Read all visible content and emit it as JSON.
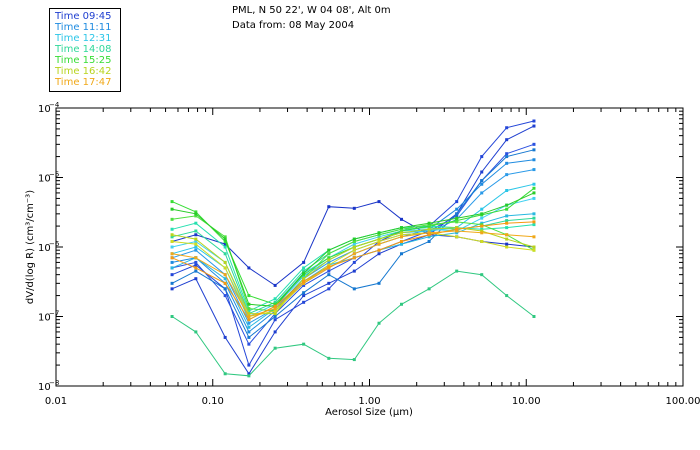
{
  "header": {
    "location": "PML, N 50 22', W 04 08', Alt 0m",
    "date_line": "Data from: 08 May 2004"
  },
  "legend": [
    {
      "label": "Time 09:45",
      "color": "#1f3fd0"
    },
    {
      "label": "Time 11:11",
      "color": "#1e8be0"
    },
    {
      "label": "Time 12:31",
      "color": "#2cc6e8"
    },
    {
      "label": "Time 14:08",
      "color": "#2fd89a"
    },
    {
      "label": "Time 15:25",
      "color": "#37dd35"
    },
    {
      "label": "Time 16:42",
      "color": "#b8d41e"
    },
    {
      "label": "Time 17:47",
      "color": "#f0a818"
    }
  ],
  "chart_data": {
    "type": "line",
    "title": "",
    "xlabel": "Aerosol Size (μm)",
    "ylabel": "dV/d(log R) (cm³/cm⁻³)",
    "xscale": "log",
    "yscale": "log",
    "xlim": [
      0.01,
      100
    ],
    "ylim": [
      1e-08,
      0.0001
    ],
    "x_ticks": [
      {
        "value": 0.01,
        "label": "0.01"
      },
      {
        "value": 0.1,
        "label": "0.10"
      },
      {
        "value": 1,
        "label": "1.00"
      },
      {
        "value": 10,
        "label": "10.00"
      },
      {
        "value": 100,
        "label": "100.00"
      }
    ],
    "y_ticks": [
      {
        "value": 1e-08,
        "mant": "10",
        "exp": "−8"
      },
      {
        "value": 1e-07,
        "mant": "10",
        "exp": "−7"
      },
      {
        "value": 1e-06,
        "mant": "10",
        "exp": "−6"
      },
      {
        "value": 1e-05,
        "mant": "10",
        "exp": "−5"
      },
      {
        "value": 0.0001,
        "mant": "10",
        "exp": "−4"
      }
    ],
    "x": [
      0.055,
      0.078,
      0.12,
      0.17,
      0.25,
      0.38,
      0.55,
      0.8,
      1.15,
      1.6,
      2.4,
      3.6,
      5.2,
      7.5,
      11.2
    ],
    "series": [
      {
        "name": "Time 09:45",
        "color": "#1f3fd0",
        "values": [
          2.5e-07,
          3.5e-07,
          5e-08,
          1.5e-08,
          6e-08,
          2e-07,
          3e-07,
          4.5e-07,
          8e-07,
          1.1e-06,
          1.5e-06,
          3e-06,
          1.2e-05,
          3.5e-05,
          5.5e-05
        ]
      },
      {
        "name": "Time 09:45",
        "color": "#1a35c8",
        "values": [
          1.2e-06,
          1.5e-06,
          1.1e-06,
          5e-07,
          2.8e-07,
          6e-07,
          3.8e-06,
          3.6e-06,
          4.5e-06,
          2.5e-06,
          1.5e-06,
          1.4e-06,
          1.2e-06,
          1.1e-06,
          1e-06
        ]
      },
      {
        "name": "Time 09:45",
        "color": "#2446d8",
        "values": [
          4e-07,
          5.5e-07,
          2.5e-07,
          2e-08,
          9e-08,
          1.6e-07,
          2.5e-07,
          6e-07,
          1.2e-06,
          1.7e-06,
          2e-06,
          4.5e-06,
          2e-05,
          5.2e-05,
          6.5e-05
        ]
      },
      {
        "name": "Time 09:45",
        "color": "#2a50e0",
        "values": [
          5e-07,
          6e-07,
          2e-07,
          4e-08,
          1.1e-07,
          2.8e-07,
          4.5e-07,
          7e-07,
          9e-07,
          1.2e-06,
          1.7e-06,
          2.8e-06,
          9e-06,
          2.2e-05,
          3e-05
        ]
      },
      {
        "name": "Time 11:11",
        "color": "#1e8be0",
        "values": [
          6e-07,
          7e-07,
          3e-07,
          6e-08,
          1.2e-07,
          3e-07,
          5e-07,
          8e-07,
          1.1e-06,
          1.4e-06,
          1.8e-06,
          3.5e-06,
          8e-06,
          1.6e-05,
          1.8e-05
        ]
      },
      {
        "name": "Time 11:11",
        "color": "#2a9ae8",
        "values": [
          7e-07,
          9e-07,
          4e-07,
          8e-08,
          1.3e-07,
          3.5e-07,
          6e-07,
          9e-07,
          1.2e-06,
          1.5e-06,
          1.6e-06,
          2.5e-06,
          6e-06,
          1.1e-05,
          1.3e-05
        ]
      },
      {
        "name": "Time 11:11",
        "color": "#1678d0",
        "values": [
          3e-07,
          4.5e-07,
          2.5e-07,
          5e-08,
          1e-07,
          2.2e-07,
          4e-07,
          2.5e-07,
          3e-07,
          8e-07,
          1.2e-06,
          3e-06,
          9e-06,
          2e-05,
          2.5e-05
        ]
      },
      {
        "name": "Time 12:31",
        "color": "#2cc6e8",
        "values": [
          8e-07,
          1e-06,
          5e-07,
          9e-08,
          1.4e-07,
          3.8e-07,
          6.5e-07,
          1e-06,
          1.3e-06,
          1.6e-06,
          1.7e-06,
          1.9e-06,
          3.5e-06,
          6.5e-06,
          8e-06
        ]
      },
      {
        "name": "Time 12:31",
        "color": "#40d0f0",
        "values": [
          1e-06,
          1.2e-06,
          6e-07,
          1e-07,
          1.5e-07,
          4.2e-07,
          7e-07,
          1.1e-06,
          1.4e-06,
          1.7e-06,
          1.8e-06,
          1.7e-06,
          2.6e-06,
          4e-06,
          5e-06
        ]
      },
      {
        "name": "Time 12:31",
        "color": "#28b8e0",
        "values": [
          5e-07,
          7e-07,
          3.5e-07,
          7e-08,
          1.3e-07,
          3.2e-07,
          5.5e-07,
          7e-07,
          9e-07,
          1.1e-06,
          1.4e-06,
          1.6e-06,
          2.2e-06,
          2.8e-06,
          3e-06
        ]
      },
      {
        "name": "Time 14:08",
        "color": "#2fd89a",
        "values": [
          1.4e-06,
          1.7e-06,
          8e-07,
          1.1e-07,
          1.6e-07,
          4.5e-07,
          8e-07,
          1.2e-06,
          1.5e-06,
          1.8e-06,
          1.9e-06,
          1.8e-06,
          2e-06,
          2.4e-06,
          2.6e-06
        ]
      },
      {
        "name": "Time 14:08",
        "color": "#30c880",
        "values": [
          1e-07,
          6e-08,
          1.5e-08,
          1.4e-08,
          3.5e-08,
          4e-08,
          2.5e-08,
          2.4e-08,
          8e-08,
          1.5e-07,
          2.5e-07,
          4.5e-07,
          4e-07,
          2e-07,
          1e-07
        ]
      },
      {
        "name": "Time 14:08",
        "color": "#26e0b0",
        "values": [
          1.8e-06,
          2.2e-06,
          1e-06,
          1.2e-07,
          1.8e-07,
          5e-07,
          9e-07,
          1.3e-06,
          1.6e-06,
          1.9e-06,
          2e-06,
          1.9e-06,
          1.8e-06,
          1.9e-06,
          2.1e-06
        ]
      },
      {
        "name": "Time 15:25",
        "color": "#37dd35",
        "values": [
          4.5e-06,
          3.2e-06,
          1.2e-06,
          2e-07,
          1.5e-07,
          4e-07,
          7e-07,
          1e-06,
          1.3e-06,
          1.7e-06,
          2e-06,
          2.4e-06,
          2.9e-06,
          3.5e-06,
          7e-06
        ]
      },
      {
        "name": "Time 15:25",
        "color": "#4ee040",
        "values": [
          2.5e-06,
          2.8e-06,
          1.4e-06,
          1.3e-07,
          1.2e-07,
          3.5e-07,
          8e-07,
          1.2e-06,
          1.5e-06,
          1.8e-06,
          2.1e-06,
          2.3e-06,
          2.1e-06,
          1.5e-06,
          9e-07
        ]
      },
      {
        "name": "Time 15:25",
        "color": "#28cc28",
        "values": [
          3.5e-06,
          3e-06,
          1.3e-06,
          1.5e-07,
          1.4e-07,
          4.2e-07,
          9e-07,
          1.3e-06,
          1.6e-06,
          1.9e-06,
          2.2e-06,
          2.6e-06,
          3e-06,
          4e-06,
          6e-06
        ]
      },
      {
        "name": "Time 16:42",
        "color": "#b8d41e",
        "values": [
          1.5e-06,
          1.3e-06,
          6e-07,
          1.1e-07,
          1.1e-07,
          3.5e-07,
          6.5e-07,
          1e-06,
          1.3e-06,
          1.6e-06,
          1.8e-06,
          1.9e-06,
          1.7e-06,
          1.3e-06,
          1e-06
        ]
      },
      {
        "name": "Time 16:42",
        "color": "#d0dc20",
        "values": [
          1.2e-06,
          1.1e-06,
          5e-07,
          1e-07,
          1.2e-07,
          3e-07,
          5.5e-07,
          9e-07,
          1.2e-06,
          1.5e-06,
          1.6e-06,
          1.4e-06,
          1.2e-06,
          1e-06,
          9e-07
        ]
      },
      {
        "name": "Time 17:47",
        "color": "#f0a818",
        "values": [
          8e-07,
          7e-07,
          4e-07,
          1e-07,
          1.3e-07,
          3e-07,
          5e-07,
          8e-07,
          1.1e-06,
          1.4e-06,
          1.6e-06,
          1.7e-06,
          1.6e-06,
          1.5e-06,
          1.4e-06
        ]
      },
      {
        "name": "Time 17:47",
        "color": "#f59a10",
        "values": [
          7e-07,
          5e-07,
          3e-07,
          9e-08,
          1.4e-07,
          3.2e-07,
          5.2e-07,
          7e-07,
          9e-07,
          1.2e-06,
          1.5e-06,
          1.8e-06,
          2e-06,
          2.2e-06,
          2.3e-06
        ]
      }
    ]
  }
}
